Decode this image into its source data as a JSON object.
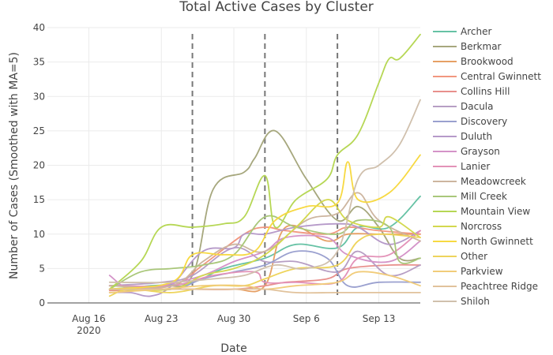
{
  "chart_data": {
    "type": "line",
    "title": "Total Active Cases by Cluster",
    "xlabel": "Date",
    "ylabel": "Number of Cases (Smoothed with MA=5)",
    "x_ticks": [
      {
        "date": "2020-08-16",
        "label": "Aug 16",
        "sublabel": "2020"
      },
      {
        "date": "2020-08-23",
        "label": "Aug 23",
        "sublabel": ""
      },
      {
        "date": "2020-08-30",
        "label": "Aug 30",
        "sublabel": ""
      },
      {
        "date": "2020-09-06",
        "label": "Sep 6",
        "sublabel": ""
      },
      {
        "date": "2020-09-13",
        "label": "Sep 13",
        "sublabel": ""
      }
    ],
    "xlim": [
      "2020-08-12",
      "2020-09-17"
    ],
    "ylim": [
      0,
      40
    ],
    "y_ticks": [
      0,
      5,
      10,
      15,
      20,
      25,
      30,
      35,
      40
    ],
    "grid": true,
    "legend_position": "right",
    "vertical_markers": [
      "2020-08-26",
      "2020-09-02",
      "2020-09-09"
    ],
    "series": [
      {
        "name": "Archer",
        "color": "#66c2a5",
        "points": [
          [
            "2020-08-18",
            2.0
          ],
          [
            "2020-08-22",
            2.5
          ],
          [
            "2020-08-26",
            3.0
          ],
          [
            "2020-08-29",
            5.0
          ],
          [
            "2020-09-02",
            6.5
          ],
          [
            "2020-09-05",
            8.5
          ],
          [
            "2020-09-09",
            8.0
          ],
          [
            "2020-09-11",
            11.0
          ],
          [
            "2020-09-14",
            11.0
          ],
          [
            "2020-09-17",
            15.5
          ]
        ]
      },
      {
        "name": "Berkmar",
        "color": "#a6a77d",
        "points": [
          [
            "2020-08-18",
            2.5
          ],
          [
            "2020-08-23",
            2.5
          ],
          [
            "2020-08-26",
            4.0
          ],
          [
            "2020-08-28",
            16.5
          ],
          [
            "2020-08-31",
            19.0
          ],
          [
            "2020-09-01",
            21.0
          ],
          [
            "2020-09-03",
            25.0
          ],
          [
            "2020-09-06",
            18.0
          ],
          [
            "2020-09-09",
            12.0
          ],
          [
            "2020-09-11",
            14.0
          ],
          [
            "2020-09-13",
            11.0
          ],
          [
            "2020-09-15",
            6.5
          ],
          [
            "2020-09-17",
            6.5
          ]
        ]
      },
      {
        "name": "Brookwood",
        "color": "#e6a065",
        "points": [
          [
            "2020-08-18",
            2.0
          ],
          [
            "2020-08-23",
            2.0
          ],
          [
            "2020-08-26",
            2.0
          ],
          [
            "2020-08-30",
            2.0
          ],
          [
            "2020-09-02",
            2.5
          ],
          [
            "2020-09-04",
            11.0
          ],
          [
            "2020-09-08",
            9.0
          ],
          [
            "2020-09-10",
            10.0
          ],
          [
            "2020-09-13",
            10.0
          ],
          [
            "2020-09-17",
            10.0
          ]
        ]
      },
      {
        "name": "Central Gwinnett",
        "color": "#f1977f",
        "points": [
          [
            "2020-08-18",
            2.0
          ],
          [
            "2020-08-24",
            2.5
          ],
          [
            "2020-08-27",
            5.5
          ],
          [
            "2020-08-31",
            10.0
          ],
          [
            "2020-09-02",
            11.0
          ],
          [
            "2020-09-04",
            10.5
          ],
          [
            "2020-09-08",
            10.0
          ],
          [
            "2020-09-10",
            11.0
          ],
          [
            "2020-09-13",
            10.5
          ],
          [
            "2020-09-17",
            10.0
          ]
        ]
      },
      {
        "name": "Collins Hill",
        "color": "#e8908c",
        "points": [
          [
            "2020-08-18",
            1.8
          ],
          [
            "2020-08-24",
            2.0
          ],
          [
            "2020-08-30",
            2.0
          ],
          [
            "2020-09-02",
            2.5
          ],
          [
            "2020-09-04",
            3.0
          ],
          [
            "2020-09-08",
            3.5
          ],
          [
            "2020-09-10",
            5.0
          ],
          [
            "2020-09-14",
            5.5
          ],
          [
            "2020-09-17",
            5.5
          ]
        ]
      },
      {
        "name": "Dacula",
        "color": "#b79ec4",
        "points": [
          [
            "2020-08-18",
            2.5
          ],
          [
            "2020-08-23",
            3.0
          ],
          [
            "2020-08-26",
            4.0
          ],
          [
            "2020-08-30",
            8.0
          ],
          [
            "2020-09-02",
            6.0
          ],
          [
            "2020-09-05",
            6.0
          ],
          [
            "2020-09-09",
            4.5
          ],
          [
            "2020-09-11",
            7.5
          ],
          [
            "2020-09-14",
            4.0
          ],
          [
            "2020-09-17",
            5.5
          ]
        ]
      },
      {
        "name": "Discovery",
        "color": "#9aa0cf",
        "points": [
          [
            "2020-08-18",
            2.0
          ],
          [
            "2020-08-24",
            2.0
          ],
          [
            "2020-08-27",
            3.5
          ],
          [
            "2020-08-30",
            4.5
          ],
          [
            "2020-09-02",
            5.5
          ],
          [
            "2020-09-05",
            7.5
          ],
          [
            "2020-09-08",
            6.5
          ],
          [
            "2020-09-10",
            2.5
          ],
          [
            "2020-09-13",
            3.0
          ],
          [
            "2020-09-17",
            3.0
          ]
        ]
      },
      {
        "name": "Duluth",
        "color": "#b69ac9",
        "points": [
          [
            "2020-08-18",
            1.5
          ],
          [
            "2020-08-20",
            1.5
          ],
          [
            "2020-08-22",
            1.0
          ],
          [
            "2020-08-24",
            2.5
          ],
          [
            "2020-08-27",
            7.5
          ],
          [
            "2020-08-30",
            8.0
          ],
          [
            "2020-08-31",
            10.0
          ],
          [
            "2020-09-02",
            10.0
          ],
          [
            "2020-09-05",
            11.0
          ],
          [
            "2020-09-09",
            11.5
          ],
          [
            "2020-09-11",
            11.0
          ],
          [
            "2020-09-14",
            8.5
          ],
          [
            "2020-09-17",
            10.5
          ]
        ]
      },
      {
        "name": "Grayson",
        "color": "#d493c8",
        "points": [
          [
            "2020-08-18",
            4.0
          ],
          [
            "2020-08-20",
            2.0
          ],
          [
            "2020-08-23",
            2.5
          ],
          [
            "2020-08-27",
            4.0
          ],
          [
            "2020-08-30",
            6.0
          ],
          [
            "2020-09-02",
            7.5
          ],
          [
            "2020-09-04",
            9.5
          ],
          [
            "2020-09-08",
            9.5
          ],
          [
            "2020-09-10",
            7.0
          ],
          [
            "2020-09-14",
            6.0
          ],
          [
            "2020-09-17",
            9.0
          ]
        ]
      },
      {
        "name": "Lanier",
        "color": "#e392b8",
        "points": [
          [
            "2020-08-18",
            2.5
          ],
          [
            "2020-08-24",
            2.5
          ],
          [
            "2020-08-28",
            4.0
          ],
          [
            "2020-09-01",
            4.5
          ],
          [
            "2020-09-02",
            3.0
          ],
          [
            "2020-09-05",
            3.0
          ],
          [
            "2020-09-09",
            3.0
          ],
          [
            "2020-09-11",
            6.5
          ],
          [
            "2020-09-14",
            7.0
          ],
          [
            "2020-09-17",
            10.5
          ]
        ]
      },
      {
        "name": "Meadowcreek",
        "color": "#cdb59f",
        "points": [
          [
            "2020-08-18",
            2.5
          ],
          [
            "2020-08-24",
            2.5
          ],
          [
            "2020-08-27",
            6.0
          ],
          [
            "2020-08-30",
            8.5
          ],
          [
            "2020-09-02",
            7.5
          ],
          [
            "2020-09-06",
            12.0
          ],
          [
            "2020-09-09",
            13.0
          ],
          [
            "2020-09-11",
            16.0
          ],
          [
            "2020-09-13",
            12.0
          ],
          [
            "2020-09-17",
            9.0
          ]
        ]
      },
      {
        "name": "Mill Creek",
        "color": "#a9c77a",
        "points": [
          [
            "2020-08-18",
            2.0
          ],
          [
            "2020-08-21",
            4.5
          ],
          [
            "2020-08-24",
            5.0
          ],
          [
            "2020-08-27",
            5.5
          ],
          [
            "2020-08-30",
            7.0
          ],
          [
            "2020-09-02",
            12.5
          ],
          [
            "2020-09-05",
            11.0
          ],
          [
            "2020-09-09",
            10.0
          ],
          [
            "2020-09-11",
            12.0
          ],
          [
            "2020-09-14",
            11.0
          ],
          [
            "2020-09-15",
            6.0
          ],
          [
            "2020-09-17",
            6.5
          ]
        ]
      },
      {
        "name": "Mountain View",
        "color": "#b6d755",
        "points": [
          [
            "2020-08-18",
            2.0
          ],
          [
            "2020-08-21",
            6.0
          ],
          [
            "2020-08-23",
            11.0
          ],
          [
            "2020-08-26",
            11.0
          ],
          [
            "2020-08-29",
            11.5
          ],
          [
            "2020-08-31",
            12.5
          ],
          [
            "2020-09-02",
            18.5
          ],
          [
            "2020-09-03",
            11.0
          ],
          [
            "2020-09-05",
            15.0
          ],
          [
            "2020-09-08",
            18.0
          ],
          [
            "2020-09-09",
            21.5
          ],
          [
            "2020-09-11",
            24.5
          ],
          [
            "2020-09-13",
            32.0
          ],
          [
            "2020-09-14",
            35.5
          ],
          [
            "2020-09-15",
            35.5
          ],
          [
            "2020-09-17",
            39.0
          ]
        ]
      },
      {
        "name": "Norcross",
        "color": "#d3d84e",
        "points": [
          [
            "2020-08-18",
            2.0
          ],
          [
            "2020-08-24",
            2.0
          ],
          [
            "2020-08-27",
            4.0
          ],
          [
            "2020-08-30",
            5.0
          ],
          [
            "2020-09-02",
            7.0
          ],
          [
            "2020-09-05",
            11.0
          ],
          [
            "2020-09-08",
            15.0
          ],
          [
            "2020-09-10",
            12.0
          ],
          [
            "2020-09-13",
            11.0
          ],
          [
            "2020-09-14",
            12.5
          ],
          [
            "2020-09-17",
            9.5
          ]
        ]
      },
      {
        "name": "North Gwinnett",
        "color": "#f7d942",
        "points": [
          [
            "2020-08-18",
            2.0
          ],
          [
            "2020-08-24",
            3.0
          ],
          [
            "2020-08-26",
            7.0
          ],
          [
            "2020-08-29",
            7.0
          ],
          [
            "2020-09-01",
            7.5
          ],
          [
            "2020-09-03",
            12.0
          ],
          [
            "2020-09-06",
            14.0
          ],
          [
            "2020-09-09",
            14.5
          ],
          [
            "2020-09-10",
            20.5
          ],
          [
            "2020-09-11",
            15.0
          ],
          [
            "2020-09-14",
            16.0
          ],
          [
            "2020-09-17",
            21.5
          ]
        ]
      },
      {
        "name": "Other",
        "color": "#eed45c",
        "points": [
          [
            "2020-08-18",
            1.0
          ],
          [
            "2020-08-20",
            2.0
          ],
          [
            "2020-08-24",
            1.5
          ],
          [
            "2020-08-28",
            2.5
          ],
          [
            "2020-08-31",
            2.5
          ],
          [
            "2020-09-02",
            3.5
          ],
          [
            "2020-09-05",
            5.0
          ],
          [
            "2020-09-09",
            5.5
          ],
          [
            "2020-09-11",
            9.0
          ],
          [
            "2020-09-13",
            10.0
          ],
          [
            "2020-09-17",
            9.5
          ]
        ]
      },
      {
        "name": "Parkview",
        "color": "#f1cc7a",
        "points": [
          [
            "2020-08-18",
            1.5
          ],
          [
            "2020-08-23",
            2.0
          ],
          [
            "2020-08-27",
            2.5
          ],
          [
            "2020-08-31",
            2.5
          ],
          [
            "2020-09-02",
            2.0
          ],
          [
            "2020-09-05",
            2.5
          ],
          [
            "2020-09-09",
            3.0
          ],
          [
            "2020-09-11",
            4.5
          ],
          [
            "2020-09-14",
            4.0
          ],
          [
            "2020-09-17",
            2.5
          ]
        ]
      },
      {
        "name": "Peachtree Ridge",
        "color": "#e1c29b",
        "points": [
          [
            "2020-08-18",
            2.0
          ],
          [
            "2020-08-23",
            2.0
          ],
          [
            "2020-08-27",
            2.0
          ],
          [
            "2020-08-30",
            2.0
          ],
          [
            "2020-09-02",
            2.0
          ],
          [
            "2020-09-05",
            1.5
          ],
          [
            "2020-09-09",
            1.5
          ],
          [
            "2020-09-13",
            1.5
          ],
          [
            "2020-09-17",
            1.5
          ]
        ]
      },
      {
        "name": "Shiloh",
        "color": "#d0c0ad",
        "points": [
          [
            "2020-08-18",
            3.0
          ],
          [
            "2020-08-24",
            3.0
          ],
          [
            "2020-08-28",
            3.5
          ],
          [
            "2020-08-31",
            4.0
          ],
          [
            "2020-09-03",
            5.5
          ],
          [
            "2020-09-06",
            5.0
          ],
          [
            "2020-09-09",
            7.5
          ],
          [
            "2020-09-11",
            18.0
          ],
          [
            "2020-09-13",
            20.0
          ],
          [
            "2020-09-15",
            23.0
          ],
          [
            "2020-09-17",
            29.5
          ]
        ]
      }
    ]
  }
}
